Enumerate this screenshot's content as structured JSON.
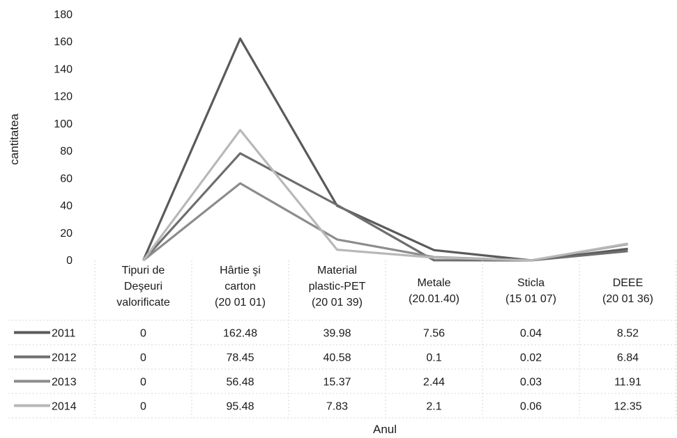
{
  "chart_data": {
    "type": "line",
    "title": "",
    "xlabel": "Anul",
    "ylabel": "cantitatea",
    "ylim": [
      0,
      180
    ],
    "yticks": [
      0,
      20,
      40,
      60,
      80,
      100,
      120,
      140,
      160,
      180
    ],
    "grid": false,
    "legend": "data-table-left",
    "categories": [
      [
        "Tipuri de",
        "Deşeuri",
        "valorificate"
      ],
      [
        "Hârtie şi",
        "carton",
        "(20 01 01)"
      ],
      [
        "Material",
        "plastic-PET",
        "(20 01 39)"
      ],
      [
        "Metale",
        "(20.01.40)"
      ],
      [
        "Sticla",
        "(15 01 07)"
      ],
      [
        "DEEE",
        "(20 01 36)"
      ]
    ],
    "series": [
      {
        "name": "2011",
        "color": "#5a5a5a",
        "values": [
          0,
          162.48,
          39.98,
          7.56,
          0.04,
          8.52
        ],
        "labels": [
          "0",
          "162.48",
          "39.98",
          "7.56",
          "0.04",
          "8.52"
        ]
      },
      {
        "name": "2012",
        "color": "#6e6e6e",
        "values": [
          0,
          78.45,
          40.58,
          0.1,
          0.02,
          6.84
        ],
        "labels": [
          "0",
          "78.45",
          "40.58",
          "0.1",
          "0.02",
          "6.84"
        ]
      },
      {
        "name": "2013",
        "color": "#8c8c8c",
        "values": [
          0,
          56.48,
          15.37,
          2.44,
          0.03,
          11.91
        ],
        "labels": [
          "0",
          "56.48",
          "15.37",
          "2.44",
          "0.03",
          "11.91"
        ]
      },
      {
        "name": "2014",
        "color": "#b8b8b8",
        "values": [
          0,
          95.48,
          7.83,
          2.1,
          0.06,
          12.35
        ],
        "labels": [
          "0",
          "95.48",
          "7.83",
          "2.1",
          "0.06",
          "12.35"
        ]
      }
    ]
  }
}
